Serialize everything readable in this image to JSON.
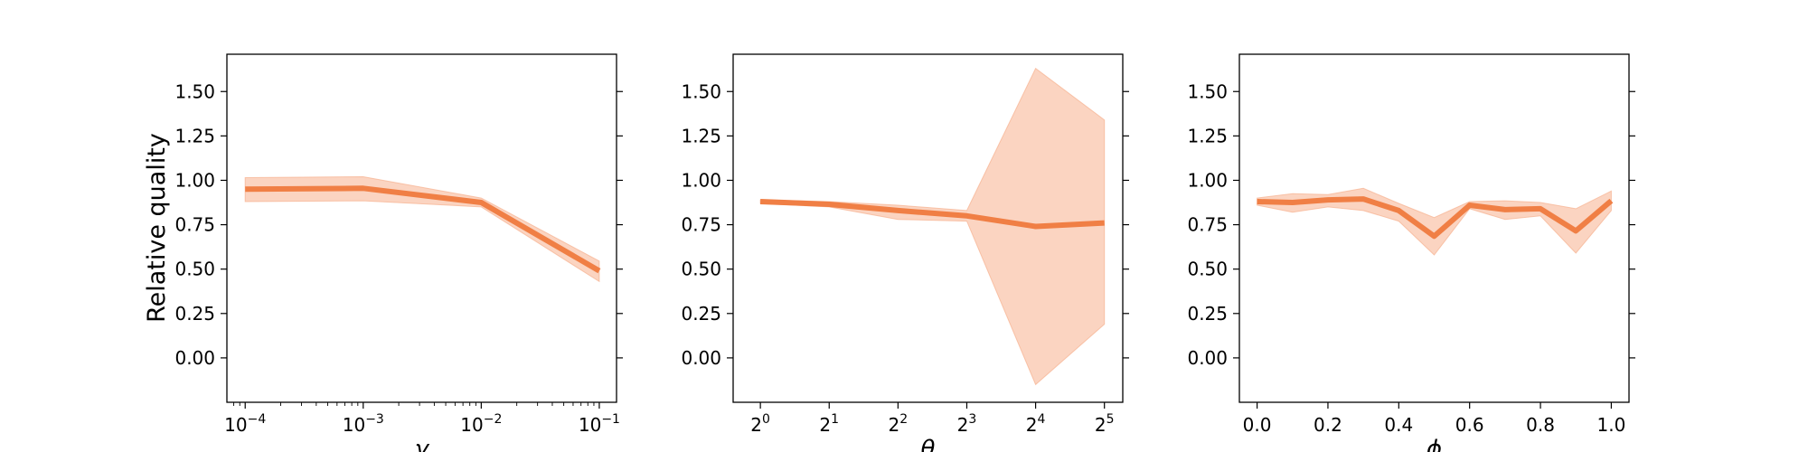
{
  "style": {
    "line_color": "#f07f45",
    "band_color": "#f7b08e",
    "band_opacity": 0.55,
    "axis_color": "#000000"
  },
  "chart_data": [
    {
      "type": "line",
      "title": "",
      "xlabel": "γ",
      "ylabel": "Relative quality",
      "xscale": "log10",
      "xlim": [
        7e-05,
        0.14
      ],
      "ylim": [
        -0.25,
        1.71
      ],
      "grid": false,
      "legend": "none",
      "xticks": [
        0.0001,
        0.001,
        0.01,
        0.1
      ],
      "xtick_labels": [
        {
          "base": "10",
          "exp": "−4"
        },
        {
          "base": "10",
          "exp": "−3"
        },
        {
          "base": "10",
          "exp": "−2"
        },
        {
          "base": "10",
          "exp": "−1"
        }
      ],
      "minor_xticks": true,
      "yticks": [
        "0.00",
        "0.25",
        "0.50",
        "0.75",
        "1.00",
        "1.25",
        "1.50"
      ],
      "series": [
        {
          "x": [
            0.0001,
            0.001,
            0.01,
            0.1
          ],
          "y": [
            0.95,
            0.955,
            0.875,
            0.49
          ],
          "lower": [
            0.88,
            0.885,
            0.85,
            0.43
          ],
          "upper": [
            1.015,
            1.02,
            0.9,
            0.545
          ]
        }
      ]
    },
    {
      "type": "line",
      "title": "",
      "xlabel": "θ",
      "ylabel": "",
      "xscale": "log2",
      "xlim": [
        0.76,
        38.5
      ],
      "ylim": [
        -0.25,
        1.71
      ],
      "grid": false,
      "legend": "none",
      "xticks": [
        1,
        2,
        4,
        8,
        16,
        32
      ],
      "xtick_labels": [
        {
          "base": "2",
          "exp": "0"
        },
        {
          "base": "2",
          "exp": "1"
        },
        {
          "base": "2",
          "exp": "2"
        },
        {
          "base": "2",
          "exp": "3"
        },
        {
          "base": "2",
          "exp": "4"
        },
        {
          "base": "2",
          "exp": "5"
        }
      ],
      "minor_xticks": false,
      "yticks": [
        "0.00",
        "0.25",
        "0.50",
        "0.75",
        "1.00",
        "1.25",
        "1.50"
      ],
      "series": [
        {
          "x": [
            1,
            2,
            4,
            8,
            16,
            32
          ],
          "y": [
            0.88,
            0.865,
            0.83,
            0.8,
            0.74,
            0.76
          ],
          "lower": [
            0.87,
            0.85,
            0.78,
            0.77,
            -0.15,
            0.19
          ],
          "upper": [
            0.89,
            0.88,
            0.86,
            0.83,
            1.63,
            1.34
          ]
        }
      ]
    },
    {
      "type": "line",
      "title": "",
      "xlabel": "ϕ",
      "ylabel": "",
      "xscale": "linear",
      "xlim": [
        -0.05,
        1.05
      ],
      "ylim": [
        -0.25,
        1.71
      ],
      "grid": false,
      "legend": "none",
      "xticks": [
        0.0,
        0.2,
        0.4,
        0.6,
        0.8,
        1.0
      ],
      "xtick_labels": [
        "0.0",
        "0.2",
        "0.4",
        "0.6",
        "0.8",
        "1.0"
      ],
      "minor_xticks": false,
      "yticks": [
        "0.00",
        "0.25",
        "0.50",
        "0.75",
        "1.00",
        "1.25",
        "1.50"
      ],
      "series": [
        {
          "x": [
            0.0,
            0.1,
            0.2,
            0.3,
            0.4,
            0.5,
            0.6,
            0.7,
            0.8,
            0.9,
            1.0
          ],
          "y": [
            0.88,
            0.875,
            0.89,
            0.895,
            0.83,
            0.685,
            0.86,
            0.835,
            0.84,
            0.715,
            0.885
          ],
          "lower": [
            0.86,
            0.82,
            0.85,
            0.83,
            0.77,
            0.58,
            0.84,
            0.78,
            0.8,
            0.59,
            0.83
          ],
          "upper": [
            0.9,
            0.925,
            0.92,
            0.955,
            0.87,
            0.79,
            0.88,
            0.885,
            0.875,
            0.84,
            0.94
          ]
        }
      ]
    }
  ]
}
